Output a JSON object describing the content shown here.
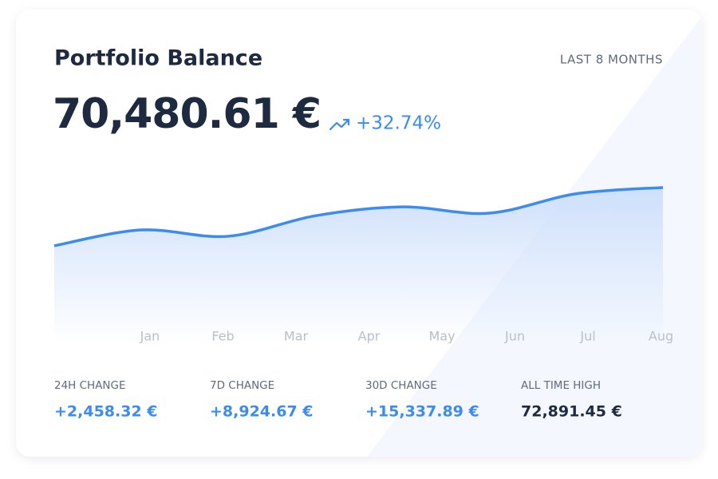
{
  "header": {
    "title": "Portfolio Balance",
    "period": "LAST 8 MONTHS",
    "balance": "70,480.61 €",
    "change": "+32.74%"
  },
  "chart_data": {
    "type": "area",
    "categories": [
      "Jan",
      "Feb",
      "Mar",
      "Apr",
      "May",
      "Jun",
      "Jul",
      "Aug"
    ],
    "values": [
      58600,
      61600,
      60400,
      64300,
      66000,
      64800,
      68500,
      69700
    ],
    "color": "#3b8bf0",
    "ylim": [
      40000,
      75000
    ]
  },
  "stats": [
    {
      "label": "24H CHANGE",
      "value": "+2,458.32 €"
    },
    {
      "label": "7D CHANGE",
      "value": "+8,924.67 €"
    },
    {
      "label": "30D CHANGE",
      "value": "+15,337.89 €"
    },
    {
      "label": "ALL TIME HIGH",
      "value": "72,891.45 €"
    }
  ]
}
